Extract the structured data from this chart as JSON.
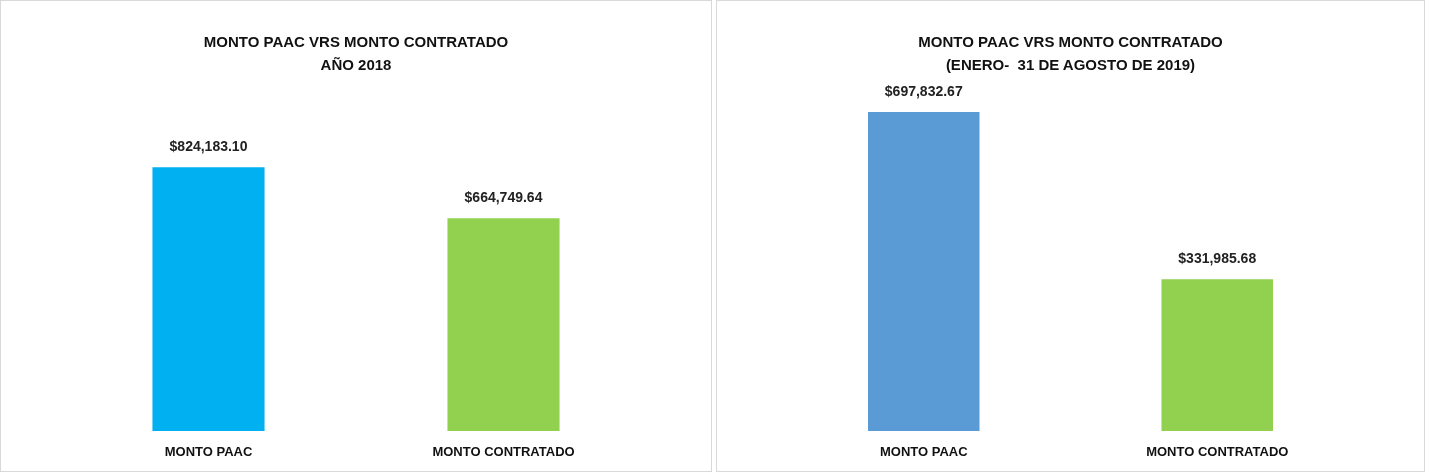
{
  "chart_data": [
    {
      "type": "bar",
      "title": "MONTO PAAC VRS MONTO CONTRATADO",
      "subtitle": "AÑO 2018",
      "categories": [
        "MONTO PAAC",
        "MONTO CONTRATADO"
      ],
      "values": [
        824183.1,
        664749.64
      ],
      "colors": [
        "#00b0f0",
        "#92d050"
      ],
      "value_labels": [
        "$824,183.10",
        "$664,749.64"
      ]
    },
    {
      "type": "bar",
      "title": "MONTO PAAC VRS MONTO CONTRATADO",
      "subtitle": "(ENERO-  31 DE AGOSTO DE 2019)",
      "categories": [
        "MONTO PAAC",
        "MONTO CONTRATADO"
      ],
      "values": [
        697832.67,
        331985.68
      ],
      "colors": [
        "#5b9bd5",
        "#92d050"
      ],
      "value_labels": [
        "$697,832.67",
        "$331,985.68"
      ]
    }
  ]
}
